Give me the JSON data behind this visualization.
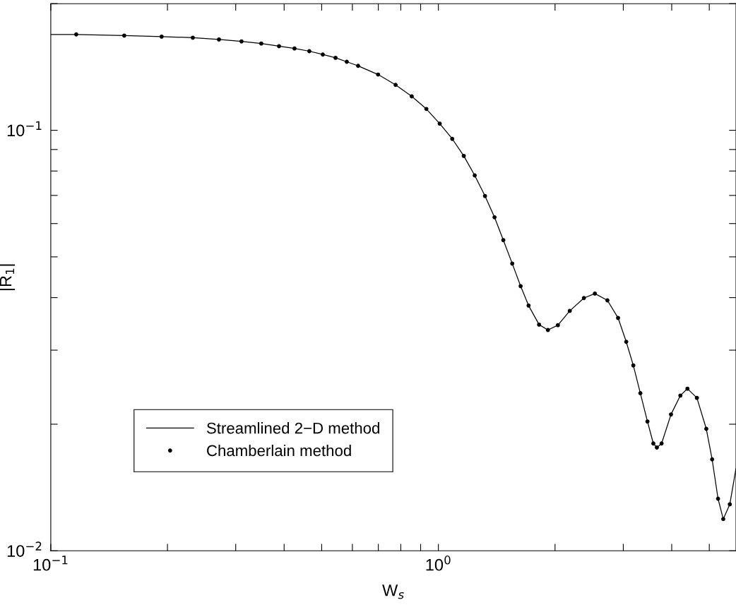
{
  "chart_data": {
    "type": "line",
    "xlabel": "W$_{s}$",
    "ylabel": "|R$_{1}$|",
    "log": "xy",
    "grid": false,
    "legend": "lower left",
    "xlim": [
      0.1,
      5.86
    ],
    "ylim": [
      0.01,
      0.2
    ],
    "xticks": [
      {
        "value": 0.1,
        "label": "10$^{−1}$"
      },
      {
        "value": 0.2,
        "label": null
      },
      {
        "value": 0.3,
        "label": null
      },
      {
        "value": 0.4,
        "label": null
      },
      {
        "value": 0.5,
        "label": null
      },
      {
        "value": 0.6,
        "label": null
      },
      {
        "value": 0.7,
        "label": null
      },
      {
        "value": 0.8,
        "label": null
      },
      {
        "value": 0.9,
        "label": null
      },
      {
        "value": 1,
        "label": "10$^{0}$"
      },
      {
        "value": 2,
        "label": null
      },
      {
        "value": 3,
        "label": null
      },
      {
        "value": 4,
        "label": null
      },
      {
        "value": 5,
        "label": null
      }
    ],
    "yticks": [
      {
        "value": 0.01,
        "label": "10$^{−2}$"
      },
      {
        "value": 0.02,
        "label": null
      },
      {
        "value": 0.03,
        "label": null
      },
      {
        "value": 0.04,
        "label": null
      },
      {
        "value": 0.05,
        "label": null
      },
      {
        "value": 0.06,
        "label": null
      },
      {
        "value": 0.07,
        "label": null
      },
      {
        "value": 0.08,
        "label": null
      },
      {
        "value": 0.09,
        "label": null
      },
      {
        "value": 0.1,
        "label": "10$^{−1}$"
      },
      {
        "value": 0.2,
        "label": null
      }
    ],
    "series": [
      {
        "name": "Streamlined 2−D method",
        "color": "#000000",
        "marker": "none",
        "line_style": "solid",
        "x": [
          0.1,
          0.1163,
          0.1547,
          0.1932,
          0.2325,
          0.2716,
          0.3105,
          0.3492,
          0.388,
          0.4254,
          0.4645,
          0.5033,
          0.5428,
          0.5803,
          0.6207,
          0.699,
          0.7756,
          0.8537,
          0.9311,
          1.008,
          1.086,
          1.163,
          1.241,
          1.319,
          1.396,
          1.471,
          1.551,
          1.63,
          1.709,
          1.819,
          1.917,
          2.034,
          2.183,
          2.374,
          2.534,
          2.73,
          2.908,
          3.053,
          3.184,
          3.32,
          3.463,
          3.586,
          3.662,
          3.767,
          3.983,
          4.211,
          4.392,
          4.645,
          4.912,
          5.085,
          5.267,
          5.433,
          5.649,
          5.86
        ],
        "values": [
          0.169,
          0.169,
          0.168,
          0.167,
          0.166,
          0.1644,
          0.1627,
          0.1608,
          0.1585,
          0.1565,
          0.1542,
          0.1514,
          0.1487,
          0.1455,
          0.1423,
          0.1357,
          0.1282,
          0.1204,
          0.1124,
          0.1037,
          0.0954,
          0.0869,
          0.0781,
          0.0698,
          0.0621,
          0.0548,
          0.0482,
          0.0426,
          0.0383,
          0.0345,
          0.0335,
          0.0344,
          0.0372,
          0.0399,
          0.0409,
          0.0394,
          0.0358,
          0.0314,
          0.0276,
          0.0237,
          0.0203,
          0.018,
          0.0176,
          0.018,
          0.0211,
          0.0234,
          0.0243,
          0.0231,
          0.0195,
          0.0165,
          0.0133,
          0.0119,
          0.0129,
          0.0157
        ]
      },
      {
        "name": "Chamberlain method",
        "type": "scatter",
        "color": "#000000",
        "marker": "circle",
        "x": [
          0.1163,
          0.1547,
          0.1932,
          0.2325,
          0.2716,
          0.3105,
          0.3492,
          0.388,
          0.4254,
          0.4645,
          0.5033,
          0.5428,
          0.5803,
          0.6207,
          0.699,
          0.7756,
          0.8537,
          0.9311,
          1.008,
          1.086,
          1.163,
          1.241,
          1.319,
          1.396,
          1.471,
          1.551,
          1.63,
          1.709,
          1.819,
          1.917,
          2.034,
          2.183,
          2.374,
          2.534,
          2.73,
          2.908,
          3.053,
          3.184,
          3.32,
          3.463,
          3.586,
          3.662,
          3.767,
          3.983,
          4.211,
          4.392,
          4.645,
          4.912,
          5.085,
          5.267,
          5.433,
          5.649
        ],
        "values": [
          0.169,
          0.168,
          0.167,
          0.166,
          0.1644,
          0.1627,
          0.1608,
          0.1585,
          0.1565,
          0.1542,
          0.1514,
          0.1487,
          0.1455,
          0.1423,
          0.1357,
          0.1282,
          0.1204,
          0.1124,
          0.1037,
          0.0954,
          0.0869,
          0.0781,
          0.0698,
          0.0621,
          0.0548,
          0.0482,
          0.0426,
          0.0383,
          0.0345,
          0.0335,
          0.0344,
          0.0372,
          0.0399,
          0.0409,
          0.0394,
          0.0358,
          0.0314,
          0.0276,
          0.0237,
          0.0203,
          0.018,
          0.0176,
          0.018,
          0.0211,
          0.0234,
          0.0243,
          0.0231,
          0.0195,
          0.0165,
          0.0133,
          0.0119,
          0.0129
        ]
      }
    ]
  }
}
